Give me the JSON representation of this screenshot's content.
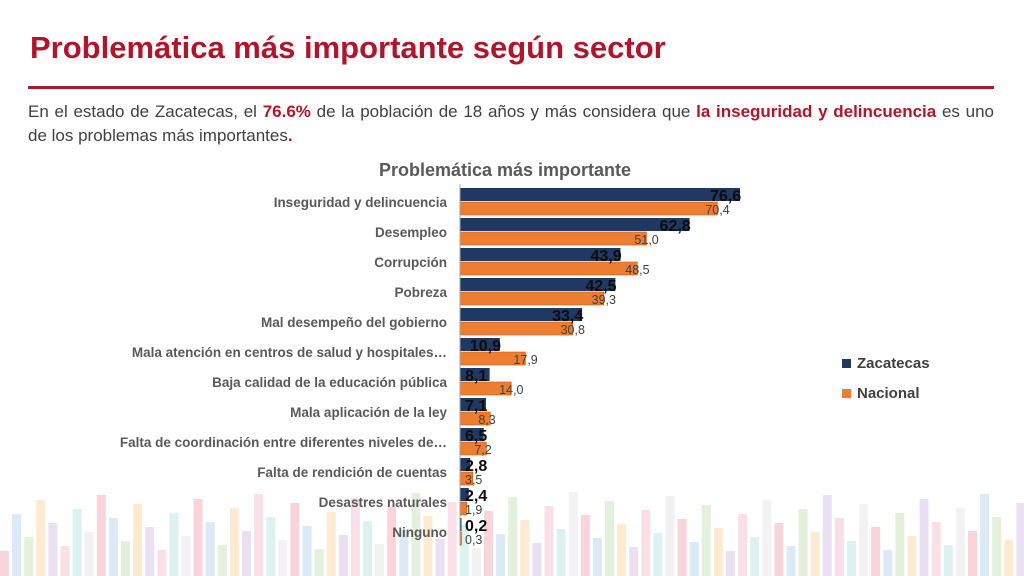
{
  "header": {
    "title": "Problemática más importante según sector",
    "intro_prefix": "En el estado de Zacatecas, el ",
    "intro_pct": "76.6%",
    "intro_mid": " de la población de 18 años y más considera que ",
    "intro_highlight": "la inseguridad y delincuencia",
    "intro_suffix": " es uno de los problemas más importantes",
    "intro_end": "."
  },
  "colors": {
    "accent": "#b0162b",
    "zacatecas": "#1f3864",
    "nacional": "#ed7d31"
  },
  "chart_data": {
    "type": "bar",
    "orientation": "horizontal",
    "title": "Problemática más importante",
    "categories": [
      "Inseguridad y delincuencia",
      "Desempleo",
      "Corrupción",
      "Pobreza",
      "Mal desempeño del gobierno",
      "Mala atención en centros de salud y hospitales…",
      "Baja calidad de la educación pública",
      "Mala aplicación de la ley",
      "Falta de coordinación entre diferentes niveles de…",
      "Falta de rendición de cuentas",
      "Desastres naturales",
      "Ninguno"
    ],
    "series": [
      {
        "name": "Zacatecas",
        "values": [
          76.6,
          62.8,
          43.9,
          42.5,
          33.4,
          10.9,
          8.1,
          7.1,
          6.5,
          2.8,
          2.4,
          0.2
        ],
        "labels": [
          "76,6",
          "62,8",
          "43,9",
          "42,5",
          "33,4",
          "10,9",
          "8,1",
          "7,1",
          "6,5",
          "2,8",
          "2,4",
          "0,2"
        ]
      },
      {
        "name": "Nacional",
        "values": [
          70.4,
          51.0,
          48.5,
          39.3,
          30.8,
          17.9,
          14.0,
          8.3,
          7.2,
          3.5,
          1.9,
          0.3
        ],
        "labels": [
          "70,4",
          "51,0",
          "48,5",
          "39,3",
          "30,8",
          "17,9",
          "14,0",
          "8,3",
          "7,2",
          "3,5",
          "1,9",
          "0,3"
        ]
      }
    ],
    "xlim": [
      0,
      80
    ],
    "legend_position": "right",
    "grid": false
  }
}
